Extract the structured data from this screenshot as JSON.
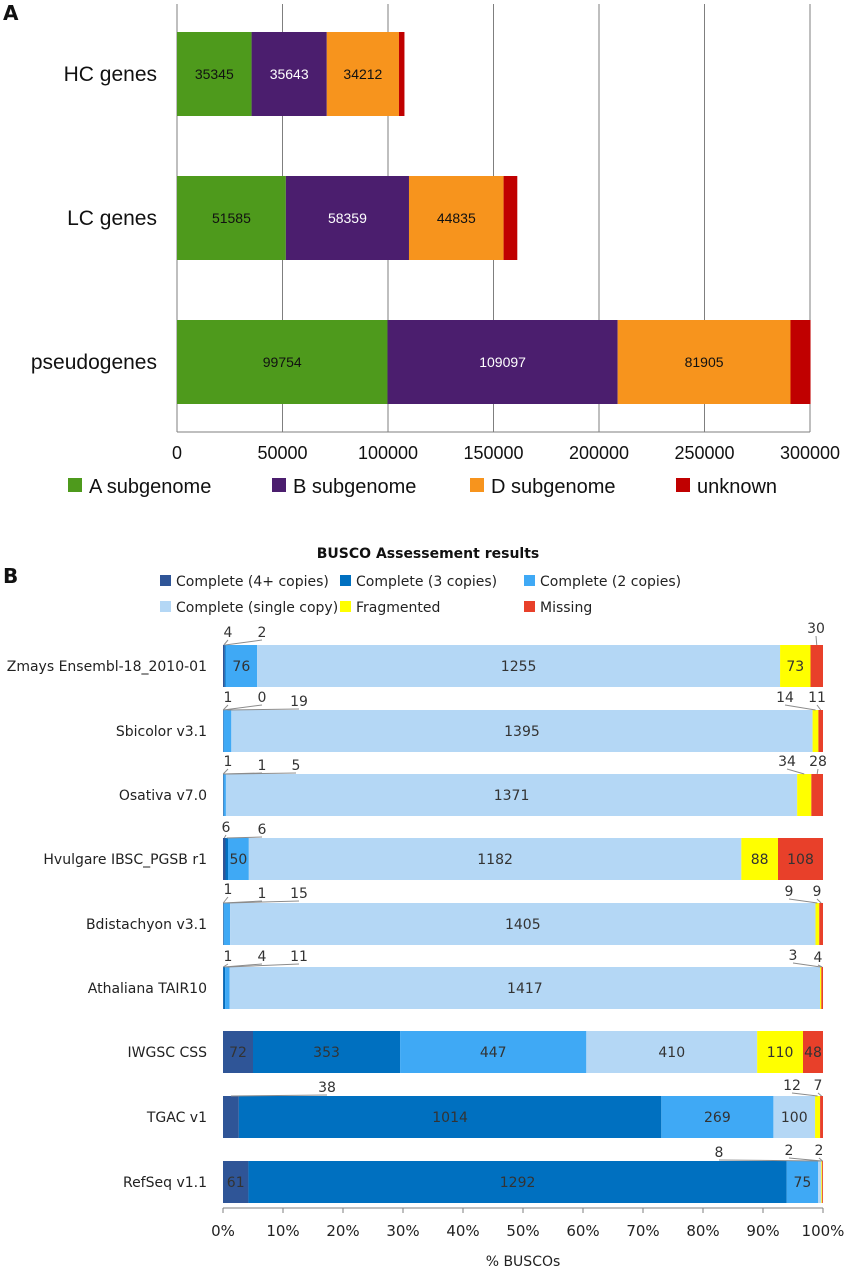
{
  "panels": {
    "a_label": "A",
    "b_label": "B"
  },
  "chart_data": [
    {
      "type": "bar",
      "orientation": "horizontal",
      "stacked": true,
      "title": "",
      "categories": [
        "HC genes",
        "LC genes",
        "pseudogenes"
      ],
      "series": [
        {
          "name": "A subgenome",
          "color": "#4e9a1c",
          "values": [
            35345,
            51585,
            99754
          ],
          "labels": [
            "35345",
            "51585",
            "99754"
          ]
        },
        {
          "name": "B subgenome",
          "color": "#4b1e6e",
          "values": [
            35643,
            58359,
            109097
          ],
          "labels": [
            "35643",
            "58359",
            "109097"
          ]
        },
        {
          "name": "D subgenome",
          "color": "#f7941d",
          "values": [
            34212,
            44835,
            81905
          ],
          "labels": [
            "34212",
            "44835",
            "81905"
          ]
        },
        {
          "name": "unknown",
          "color": "#c00000",
          "values": [
            2600,
            6500,
            9500
          ],
          "labels": [
            "",
            "",
            ""
          ]
        }
      ],
      "xlim": [
        0,
        300000
      ],
      "xticks": [
        "0",
        "50000",
        "100000",
        "150000",
        "200000",
        "250000",
        "300000"
      ],
      "grid": true,
      "legend_position": "bottom"
    },
    {
      "type": "bar",
      "orientation": "horizontal",
      "stacked": true,
      "normalized": true,
      "title": "BUSCO Assessement results",
      "xlabel": "% BUSCOs",
      "xticks": [
        "0%",
        "10%",
        "20%",
        "30%",
        "40%",
        "50%",
        "60%",
        "70%",
        "80%",
        "90%",
        "100%"
      ],
      "legend_position": "top",
      "categories": [
        "Zmays Ensembl-18_2010-01",
        "Sbicolor v3.1",
        "Osativa v7.0",
        "Hvulgare IBSC_PGSB r1",
        "Bdistachyon v3.1",
        "Athaliana TAIR10",
        "IWGSC CSS",
        "TGAC v1",
        "RefSeq v1.1"
      ],
      "series": [
        {
          "name": "Complete (4+ copies)",
          "color": "#2f5597",
          "values": [
            4,
            1,
            1,
            6,
            1,
            1,
            72,
            38,
            61
          ]
        },
        {
          "name": "Complete (3 copies)",
          "color": "#0070c0",
          "values": [
            2,
            0,
            1,
            6,
            1,
            4,
            353,
            1014,
            1292
          ]
        },
        {
          "name": "Complete (2 copies)",
          "color": "#3fa9f5",
          "values": [
            76,
            19,
            5,
            50,
            15,
            11,
            447,
            269,
            75
          ]
        },
        {
          "name": "Complete (single copy)",
          "color": "#b4d7f5",
          "values": [
            1255,
            1395,
            1371,
            1182,
            1405,
            1417,
            410,
            100,
            8
          ]
        },
        {
          "name": "Fragmented",
          "color": "#ffff00",
          "values": [
            73,
            14,
            34,
            88,
            9,
            3,
            110,
            12,
            2
          ]
        },
        {
          "name": "Missing",
          "color": "#e8402a",
          "values": [
            30,
            11,
            28,
            108,
            9,
            4,
            48,
            7,
            2
          ]
        }
      ]
    }
  ]
}
